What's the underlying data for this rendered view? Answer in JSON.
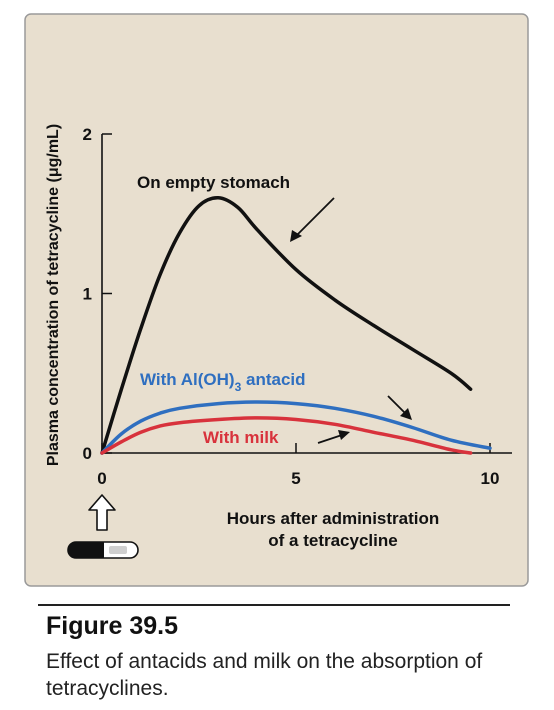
{
  "chart_data": {
    "type": "line",
    "xlabel_lines": [
      "Hours after administration",
      "of a tetracycline"
    ],
    "ylabel": "Plasma concentration of tetracycline (μg/mL)",
    "xlim": [
      0,
      10
    ],
    "ylim": [
      0,
      2
    ],
    "x_ticks": [
      {
        "value": 0,
        "label": "0"
      },
      {
        "value": 5,
        "label": "5"
      },
      {
        "value": 10,
        "label": "10"
      }
    ],
    "y_ticks": [
      {
        "value": 0,
        "label": "0"
      },
      {
        "value": 1,
        "label": "1"
      },
      {
        "value": 2,
        "label": "2"
      }
    ],
    "grid": false,
    "series": [
      {
        "name": "On empty stomach",
        "color": "#111111",
        "x": [
          0,
          0.5,
          1,
          1.5,
          2,
          2.5,
          3,
          3.5,
          4,
          5,
          6,
          7,
          8,
          9,
          9.5
        ],
        "y": [
          0,
          0.4,
          0.78,
          1.12,
          1.38,
          1.55,
          1.6,
          1.54,
          1.4,
          1.15,
          0.96,
          0.8,
          0.65,
          0.5,
          0.4
        ]
      },
      {
        "name": "With Al(OH)3 antacid",
        "color": "#2f6fc0",
        "x": [
          0,
          0.5,
          1,
          1.5,
          2,
          3,
          4,
          5,
          6,
          7,
          8,
          9,
          10
        ],
        "y": [
          0,
          0.12,
          0.2,
          0.25,
          0.28,
          0.31,
          0.32,
          0.31,
          0.28,
          0.23,
          0.16,
          0.08,
          0.03
        ]
      },
      {
        "name": "With milk",
        "color": "#d8323c",
        "x": [
          0,
          0.5,
          1,
          1.5,
          2,
          3,
          4,
          5,
          6,
          7,
          8,
          9,
          9.5
        ],
        "y": [
          0,
          0.07,
          0.13,
          0.17,
          0.19,
          0.21,
          0.22,
          0.21,
          0.18,
          0.13,
          0.08,
          0.02,
          0
        ]
      }
    ],
    "annotations": {
      "empty_stomach": "On empty stomach",
      "antacid_prefix": "With Al(OH)",
      "antacid_sub": "3",
      "antacid_suffix": " antacid",
      "milk": "With milk"
    }
  },
  "caption": {
    "title": "Figure 39.5",
    "text": "Effect of antacids and milk on the absorption of tetracyclines."
  },
  "colors": {
    "panel_background": "#e8dfcf",
    "panel_border": "#9a9a9a",
    "axis": "#111111"
  },
  "icons": {
    "dose_marker": "up-arrow-icon",
    "capsule": "capsule-icon"
  }
}
